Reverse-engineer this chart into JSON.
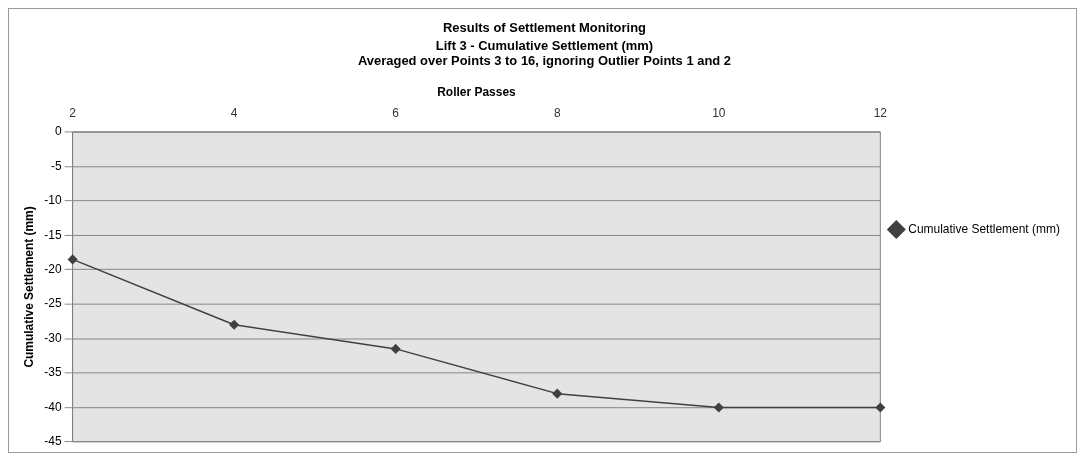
{
  "chart_data": {
    "type": "line",
    "title": "Results of Settlement Monitoring",
    "subtitle": "Lift 3 - Cumulative Settlement (mm)",
    "annotations": [
      "Averaged over Points 3 to 16, ignoring Outlier Points 1 and 2"
    ],
    "xlabel": "Roller Passes",
    "ylabel": "Cumulative Settlement (mm)",
    "categories": [
      "2",
      "4",
      "6",
      "8",
      "10",
      "12"
    ],
    "series": [
      {
        "name": "Cumulative Settlement (mm)",
        "color": "#404040",
        "values": [
          -18.5,
          -28,
          -31.5,
          -38,
          -40,
          -40
        ]
      }
    ],
    "ylim": [
      -45,
      0
    ],
    "yticks": [
      0,
      -5,
      -10,
      -15,
      -20,
      -25,
      -30,
      -35,
      -40,
      -45
    ],
    "grid": "y",
    "legend": "right",
    "marker": "diamond",
    "line_style": "solid"
  }
}
